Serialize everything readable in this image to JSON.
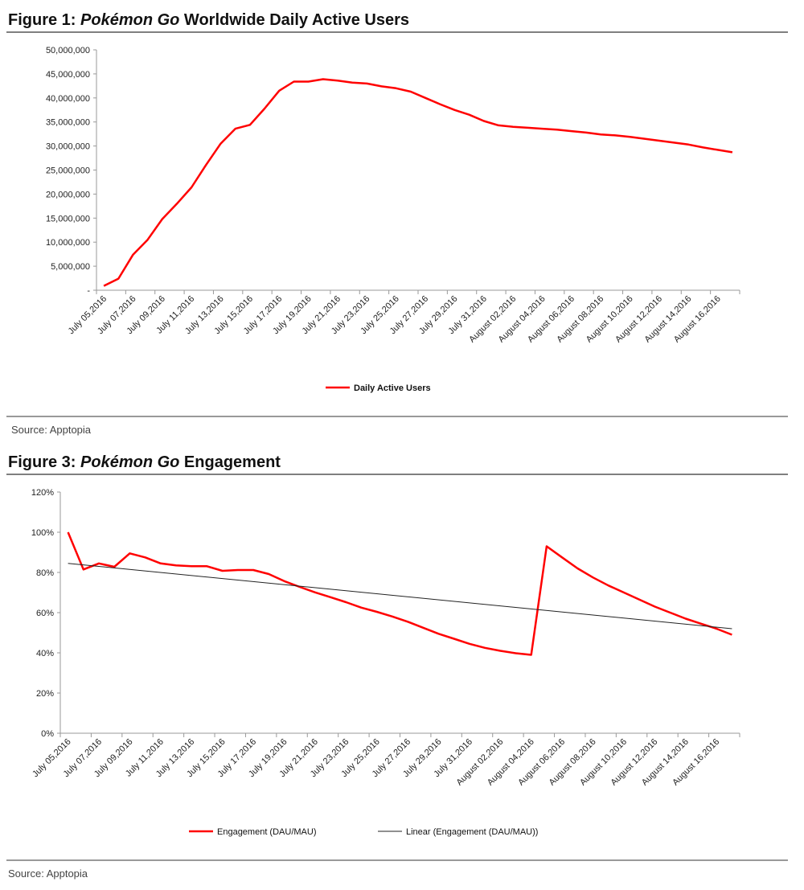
{
  "figure1": {
    "title_prefix": "Figure 1: ",
    "title_italic": "Pokémon Go",
    "title_suffix": " Worldwide Daily Active Users",
    "source": "Source: Apptopia"
  },
  "figure3": {
    "title_prefix": "Figure 3: ",
    "title_italic": "Pokémon Go",
    "title_suffix": " Engagement",
    "source": "Source: Apptopia"
  },
  "chart_data": [
    {
      "type": "line",
      "title": "Figure 1: Pokémon Go Worldwide Daily Active Users",
      "xlabel": "",
      "ylabel": "",
      "ylim": [
        0,
        50000000
      ],
      "yticks": [
        0,
        5000000,
        10000000,
        15000000,
        20000000,
        25000000,
        30000000,
        35000000,
        40000000,
        45000000,
        50000000
      ],
      "ytick_labels": [
        "-",
        "5,000,000",
        "10,000,000",
        "15,000,000",
        "20,000,000",
        "25,000,000",
        "30,000,000",
        "35,000,000",
        "40,000,000",
        "45,000,000",
        "50,000,000"
      ],
      "x_start": "July 05, 2016",
      "x_end": "August 17, 2016",
      "xtick_labels": [
        "July 05,2016",
        "July 07,2016",
        "July 09,2016",
        "July 11,2016",
        "July 13,2016",
        "July 15,2016",
        "July 17,2016",
        "July 19,2016",
        "July 21,2016",
        "July 23,2016",
        "July 25,2016",
        "July 27,2016",
        "July 29,2016",
        "July 31,2016",
        "August 02,2016",
        "August 04,2016",
        "August 06,2016",
        "August 08,2016",
        "August 10,2016",
        "August 12,2016",
        "August 14,2016",
        "August 16,2016"
      ],
      "legend_position": "bottom",
      "color": "#ff0000",
      "series": [
        {
          "name": "Daily Active Users",
          "color": "#ff0000",
          "values": [
            900000,
            2400000,
            7400000,
            10500000,
            14800000,
            18000000,
            21400000,
            26100000,
            30500000,
            33600000,
            34400000,
            37800000,
            41500000,
            43400000,
            43400000,
            43900000,
            43600000,
            43200000,
            43000000,
            42400000,
            42000000,
            41300000,
            40000000,
            38700000,
            37500000,
            36500000,
            35200000,
            34300000,
            34000000,
            33800000,
            33600000,
            33400000,
            33100000,
            32800000,
            32400000,
            32200000,
            31900000,
            31500000,
            31100000,
            30700000,
            30300000,
            29700000,
            29200000,
            28700000
          ]
        }
      ]
    },
    {
      "type": "line",
      "title": "Figure 3: Pokémon Go Engagement",
      "xlabel": "",
      "ylabel": "",
      "ylim": [
        0,
        120
      ],
      "yticks": [
        0,
        20,
        40,
        60,
        80,
        100,
        120
      ],
      "ytick_labels": [
        "0%",
        "20%",
        "40%",
        "60%",
        "80%",
        "100%",
        "120%"
      ],
      "x_start": "July 05, 2016",
      "x_end": "August 17, 2016",
      "xtick_labels": [
        "July 05,2016",
        "July 07,2016",
        "July 09,2016",
        "July 11,2016",
        "July 13,2016",
        "July 15,2016",
        "July 17,2016",
        "July 19,2016",
        "July 21,2016",
        "July 23,2016",
        "July 25,2016",
        "July 27,2016",
        "July 29,2016",
        "July 31,2016",
        "August 02,2016",
        "August 04,2016",
        "August 06,2016",
        "August 08,2016",
        "August 10,2016",
        "August 12,2016",
        "August 14,2016",
        "August 16,2016"
      ],
      "legend_position": "bottom",
      "series": [
        {
          "name": "Engagement (DAU/MAU)",
          "color": "#ff0000",
          "values": [
            100,
            81.5,
            84.5,
            82.8,
            89.5,
            87.5,
            84.5,
            83.5,
            83.1,
            83.1,
            80.8,
            81.2,
            81.2,
            79.2,
            75.7,
            72.8,
            70.1,
            67.7,
            65.2,
            62.5,
            60.4,
            58.1,
            55.5,
            52.5,
            49.5,
            47,
            44.5,
            42.5,
            41,
            39.8,
            39,
            93,
            87.5,
            82,
            77.5,
            73.5,
            70,
            66.5,
            63,
            60,
            57,
            54.5,
            52,
            49
          ]
        },
        {
          "name": "Linear (Engagement (DAU/MAU))",
          "color": "#222222",
          "trendline": true,
          "start_value": 84.5,
          "end_value": 52
        }
      ]
    }
  ]
}
